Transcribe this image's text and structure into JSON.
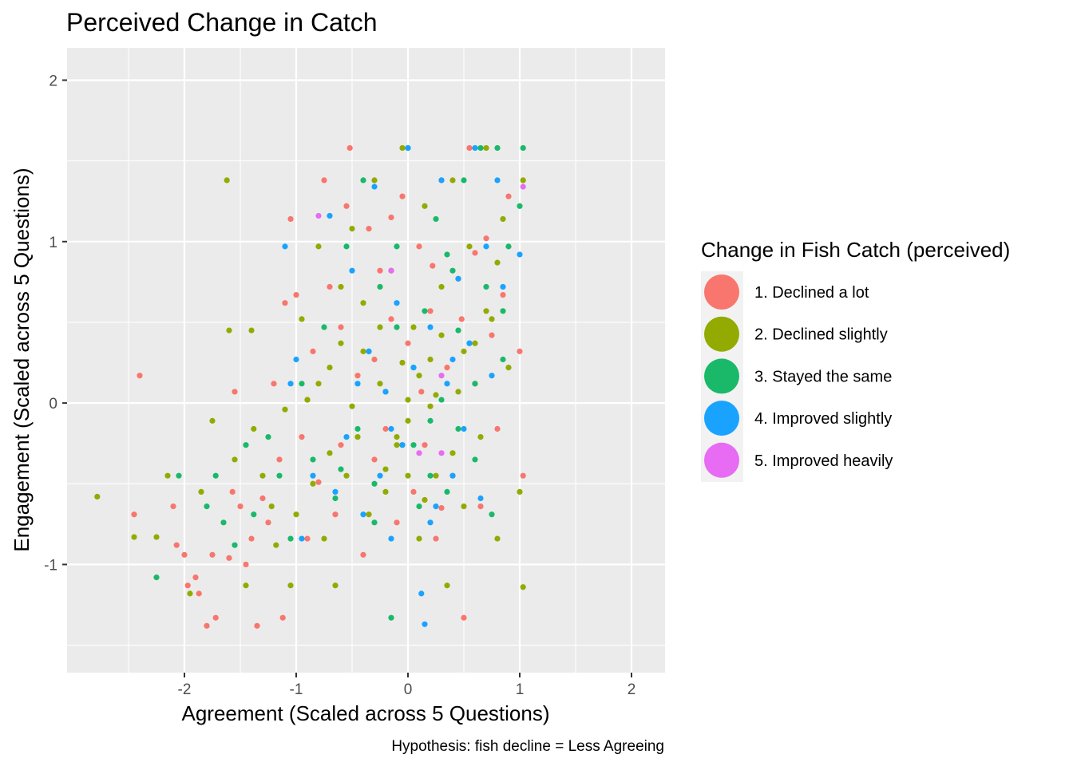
{
  "chart_data": {
    "type": "scatter",
    "title": "Perceived Change in Catch",
    "xlabel": "Agreement (Scaled across 5 Questions)",
    "ylabel": "Engagement (Scaled across 5 Questions)",
    "caption": "Hypothesis: fish decline = Less Agreeing",
    "xlim": [
      -3.05,
      2.3
    ],
    "ylim": [
      -1.67,
      2.2
    ],
    "x_ticks": [
      -2,
      -1,
      0,
      1,
      2
    ],
    "y_ticks": [
      -1,
      0,
      1,
      2
    ],
    "x_tick_labels": [
      "-2",
      "-1",
      "0",
      "1",
      "2"
    ],
    "y_tick_labels": [
      "-1",
      "0",
      "1",
      "2"
    ],
    "grid": true,
    "legend": {
      "title": "Change in Fish Catch (perceived)",
      "position": "right"
    },
    "series": [
      {
        "name": "1. Declined a lot",
        "color": "#F8766D",
        "points": [
          [
            -2.4,
            0.17
          ],
          [
            -2.45,
            -0.69
          ],
          [
            -2.1,
            -0.64
          ],
          [
            -2.07,
            -0.88
          ],
          [
            -2.0,
            -0.94
          ],
          [
            -1.97,
            -1.13
          ],
          [
            -1.9,
            -1.08
          ],
          [
            -1.87,
            -1.18
          ],
          [
            -1.8,
            -1.38
          ],
          [
            -1.75,
            -0.94
          ],
          [
            -1.72,
            -1.33
          ],
          [
            -1.6,
            -0.96
          ],
          [
            -1.57,
            -0.55
          ],
          [
            -1.55,
            0.07
          ],
          [
            -1.5,
            -0.64
          ],
          [
            -1.45,
            -1.0
          ],
          [
            -1.4,
            -0.84
          ],
          [
            -1.35,
            -1.38
          ],
          [
            -1.3,
            -0.59
          ],
          [
            -1.25,
            -0.74
          ],
          [
            -1.2,
            0.12
          ],
          [
            -1.15,
            -0.35
          ],
          [
            -1.12,
            -1.33
          ],
          [
            -1.1,
            0.62
          ],
          [
            -1.05,
            1.14
          ],
          [
            -1.0,
            0.67
          ],
          [
            -0.95,
            -0.21
          ],
          [
            -0.9,
            -0.84
          ],
          [
            -0.85,
            0.32
          ],
          [
            -0.8,
            -0.49
          ],
          [
            -0.75,
            1.38
          ],
          [
            -0.7,
            0.72
          ],
          [
            -0.65,
            -0.69
          ],
          [
            -0.6,
            0.47
          ],
          [
            -0.55,
            1.22
          ],
          [
            -0.52,
            1.58
          ],
          [
            -0.45,
            0.17
          ],
          [
            -0.4,
            -0.94
          ],
          [
            -0.35,
            1.08
          ],
          [
            -0.3,
            -0.35
          ],
          [
            -0.25,
            0.82
          ],
          [
            -0.2,
            -0.16
          ],
          [
            -0.15,
            0.52
          ],
          [
            -0.1,
            -0.74
          ],
          [
            -0.05,
            1.28
          ],
          [
            0.0,
            0.37
          ],
          [
            0.05,
            -0.55
          ],
          [
            0.1,
            0.97
          ],
          [
            0.15,
            -0.26
          ],
          [
            0.2,
            0.57
          ],
          [
            0.25,
            -0.84
          ],
          [
            0.3,
            1.38
          ],
          [
            0.35,
            0.22
          ],
          [
            0.4,
            -0.45
          ],
          [
            0.45,
            0.77
          ],
          [
            0.5,
            -1.33
          ],
          [
            0.55,
            1.58
          ],
          [
            0.6,
            0.12
          ],
          [
            0.65,
            -0.64
          ],
          [
            0.7,
            1.02
          ],
          [
            0.75,
            0.42
          ],
          [
            0.8,
            -0.16
          ],
          [
            0.85,
            0.67
          ],
          [
            0.9,
            1.28
          ],
          [
            1.0,
            0.32
          ],
          [
            1.03,
            -0.45
          ],
          [
            -0.3,
            0.27
          ],
          [
            0.12,
            0.07
          ],
          [
            0.3,
            -0.65
          ],
          [
            -0.6,
            -0.26
          ],
          [
            0.48,
            0.52
          ],
          [
            -0.15,
            1.15
          ],
          [
            0.6,
            0.93
          ],
          [
            -0.9,
            0.02
          ],
          [
            0.22,
            0.85
          ]
        ]
      },
      {
        "name": "2. Declined slightly",
        "color": "#93AA00",
        "points": [
          [
            -2.78,
            -0.58
          ],
          [
            -2.45,
            -0.83
          ],
          [
            -2.25,
            -0.83
          ],
          [
            -2.15,
            -0.45
          ],
          [
            -1.95,
            -1.18
          ],
          [
            -1.85,
            -0.55
          ],
          [
            -1.75,
            -0.11
          ],
          [
            -1.62,
            1.38
          ],
          [
            -1.6,
            0.45
          ],
          [
            -1.55,
            -0.35
          ],
          [
            -1.45,
            -1.13
          ],
          [
            -1.4,
            0.45
          ],
          [
            -1.38,
            -0.16
          ],
          [
            -1.3,
            -0.45
          ],
          [
            -1.22,
            -0.64
          ],
          [
            -1.18,
            -0.88
          ],
          [
            -1.1,
            -0.04
          ],
          [
            -1.05,
            -1.13
          ],
          [
            -1.0,
            -0.69
          ],
          [
            -0.95,
            0.52
          ],
          [
            -0.9,
            0.02
          ],
          [
            -0.85,
            -0.5
          ],
          [
            -0.8,
            0.97
          ],
          [
            -0.75,
            -0.84
          ],
          [
            -0.7,
            0.22
          ],
          [
            -0.65,
            -1.13
          ],
          [
            -0.6,
            0.37
          ],
          [
            -0.55,
            -0.45
          ],
          [
            -0.5,
            1.08
          ],
          [
            -0.45,
            -0.21
          ],
          [
            -0.4,
            0.62
          ],
          [
            -0.35,
            -0.69
          ],
          [
            -0.3,
            1.38
          ],
          [
            -0.25,
            0.12
          ],
          [
            -0.2,
            -0.55
          ],
          [
            -0.15,
            0.82
          ],
          [
            -0.1,
            -0.26
          ],
          [
            -0.05,
            1.58
          ],
          [
            0.0,
            -0.11
          ],
          [
            0.05,
            0.47
          ],
          [
            0.1,
            -0.84
          ],
          [
            0.15,
            1.22
          ],
          [
            0.2,
            0.27
          ],
          [
            0.25,
            -0.45
          ],
          [
            0.3,
            0.72
          ],
          [
            0.35,
            -1.13
          ],
          [
            0.4,
            1.38
          ],
          [
            0.45,
            0.07
          ],
          [
            0.5,
            -0.64
          ],
          [
            0.55,
            0.97
          ],
          [
            0.6,
            0.37
          ],
          [
            0.65,
            -0.21
          ],
          [
            0.7,
            1.58
          ],
          [
            0.75,
            0.52
          ],
          [
            0.8,
            -0.84
          ],
          [
            0.85,
            1.14
          ],
          [
            0.9,
            0.22
          ],
          [
            1.0,
            -0.55
          ],
          [
            1.03,
            1.38
          ],
          [
            1.03,
            -1.14
          ],
          [
            0.0,
            0.02
          ],
          [
            -0.1,
            -0.21
          ],
          [
            0.1,
            0.17
          ],
          [
            -0.2,
            -0.41
          ],
          [
            0.2,
            -0.02
          ],
          [
            -0.4,
            0.32
          ],
          [
            0.4,
            -0.31
          ],
          [
            -0.5,
            -0.02
          ],
          [
            0.5,
            0.32
          ],
          [
            -0.7,
            -0.31
          ],
          [
            0.7,
            0.57
          ],
          [
            -0.8,
            0.12
          ],
          [
            0.8,
            0.87
          ],
          [
            -0.6,
            0.72
          ],
          [
            0.3,
            0.42
          ],
          [
            0.0,
            -0.45
          ],
          [
            -0.25,
            0.47
          ],
          [
            0.15,
            -0.6
          ],
          [
            -0.05,
            0.25
          ],
          [
            0.25,
            0.05
          ]
        ]
      },
      {
        "name": "3. Stayed the same",
        "color": "#1AB96A",
        "points": [
          [
            -2.25,
            -1.08
          ],
          [
            -2.05,
            -0.45
          ],
          [
            -1.8,
            -0.64
          ],
          [
            -1.72,
            -0.45
          ],
          [
            -1.65,
            -0.74
          ],
          [
            -1.55,
            -0.88
          ],
          [
            -1.45,
            -0.26
          ],
          [
            -1.38,
            -0.69
          ],
          [
            -1.25,
            -0.21
          ],
          [
            -1.15,
            -0.45
          ],
          [
            -1.05,
            -0.84
          ],
          [
            -0.95,
            0.12
          ],
          [
            -0.85,
            -0.35
          ],
          [
            -0.75,
            0.47
          ],
          [
            -0.65,
            -0.59
          ],
          [
            -0.55,
            0.97
          ],
          [
            -0.45,
            -0.16
          ],
          [
            -0.4,
            1.38
          ],
          [
            -0.35,
            0.32
          ],
          [
            -0.3,
            -0.74
          ],
          [
            -0.25,
            0.72
          ],
          [
            -0.15,
            -1.33
          ],
          [
            -0.1,
            0.97
          ],
          [
            -0.05,
            -0.26
          ],
          [
            0.0,
            1.58
          ],
          [
            0.05,
            0.22
          ],
          [
            0.1,
            -0.64
          ],
          [
            0.15,
            0.57
          ],
          [
            0.2,
            -0.45
          ],
          [
            0.25,
            1.14
          ],
          [
            0.3,
            0.02
          ],
          [
            0.35,
            -0.55
          ],
          [
            0.4,
            0.82
          ],
          [
            0.45,
            -0.16
          ],
          [
            0.5,
            1.38
          ],
          [
            0.55,
            0.37
          ],
          [
            0.6,
            -0.35
          ],
          [
            0.65,
            1.58
          ],
          [
            0.7,
            0.72
          ],
          [
            0.75,
            -0.69
          ],
          [
            0.8,
            1.58
          ],
          [
            0.85,
            0.27
          ],
          [
            0.9,
            0.97
          ],
          [
            1.0,
            1.22
          ],
          [
            1.03,
            1.58
          ],
          [
            -0.2,
            0.07
          ],
          [
            0.2,
            -0.11
          ],
          [
            -0.6,
            -0.41
          ],
          [
            0.6,
            0.12
          ],
          [
            0.05,
            -0.26
          ],
          [
            -0.1,
            0.47
          ],
          [
            0.35,
            0.92
          ],
          [
            -0.3,
            -0.5
          ],
          [
            0.85,
            0.57
          ],
          [
            0.45,
            0.45
          ]
        ]
      },
      {
        "name": "4. Improved slightly",
        "color": "#19A3FF",
        "points": [
          [
            -1.1,
            0.97
          ],
          [
            -1.05,
            0.12
          ],
          [
            -1.0,
            0.27
          ],
          [
            -0.95,
            -0.84
          ],
          [
            -0.7,
            1.16
          ],
          [
            -0.65,
            -0.55
          ],
          [
            -0.55,
            -0.21
          ],
          [
            -0.5,
            0.82
          ],
          [
            -0.4,
            -0.69
          ],
          [
            -0.35,
            0.32
          ],
          [
            -0.3,
            1.34
          ],
          [
            -0.25,
            -0.45
          ],
          [
            -0.2,
            0.07
          ],
          [
            -0.15,
            -0.84
          ],
          [
            -0.1,
            0.62
          ],
          [
            -0.05,
            -0.26
          ],
          [
            0.0,
            1.58
          ],
          [
            0.05,
            0.22
          ],
          [
            0.12,
            -1.18
          ],
          [
            0.15,
            -1.37
          ],
          [
            0.2,
            0.47
          ],
          [
            0.25,
            -0.64
          ],
          [
            0.3,
            1.38
          ],
          [
            0.35,
            0.12
          ],
          [
            0.4,
            -0.45
          ],
          [
            0.45,
            0.77
          ],
          [
            0.5,
            -0.16
          ],
          [
            0.55,
            0.37
          ],
          [
            0.6,
            1.58
          ],
          [
            0.65,
            -0.59
          ],
          [
            0.7,
            0.97
          ],
          [
            0.75,
            0.17
          ],
          [
            0.8,
            1.38
          ],
          [
            0.85,
            0.72
          ],
          [
            1.0,
            0.92
          ],
          [
            -0.85,
            -0.45
          ],
          [
            0.2,
            -0.74
          ],
          [
            -0.45,
            0.12
          ],
          [
            0.4,
            0.27
          ],
          [
            -0.15,
            -0.16
          ]
        ]
      },
      {
        "name": "5. Improved heavily",
        "color": "#E76BF3",
        "points": [
          [
            -0.8,
            1.16
          ],
          [
            -0.15,
            0.82
          ],
          [
            0.1,
            -0.31
          ],
          [
            0.3,
            0.17
          ],
          [
            0.3,
            -0.31
          ],
          [
            1.03,
            1.34
          ]
        ]
      }
    ]
  }
}
